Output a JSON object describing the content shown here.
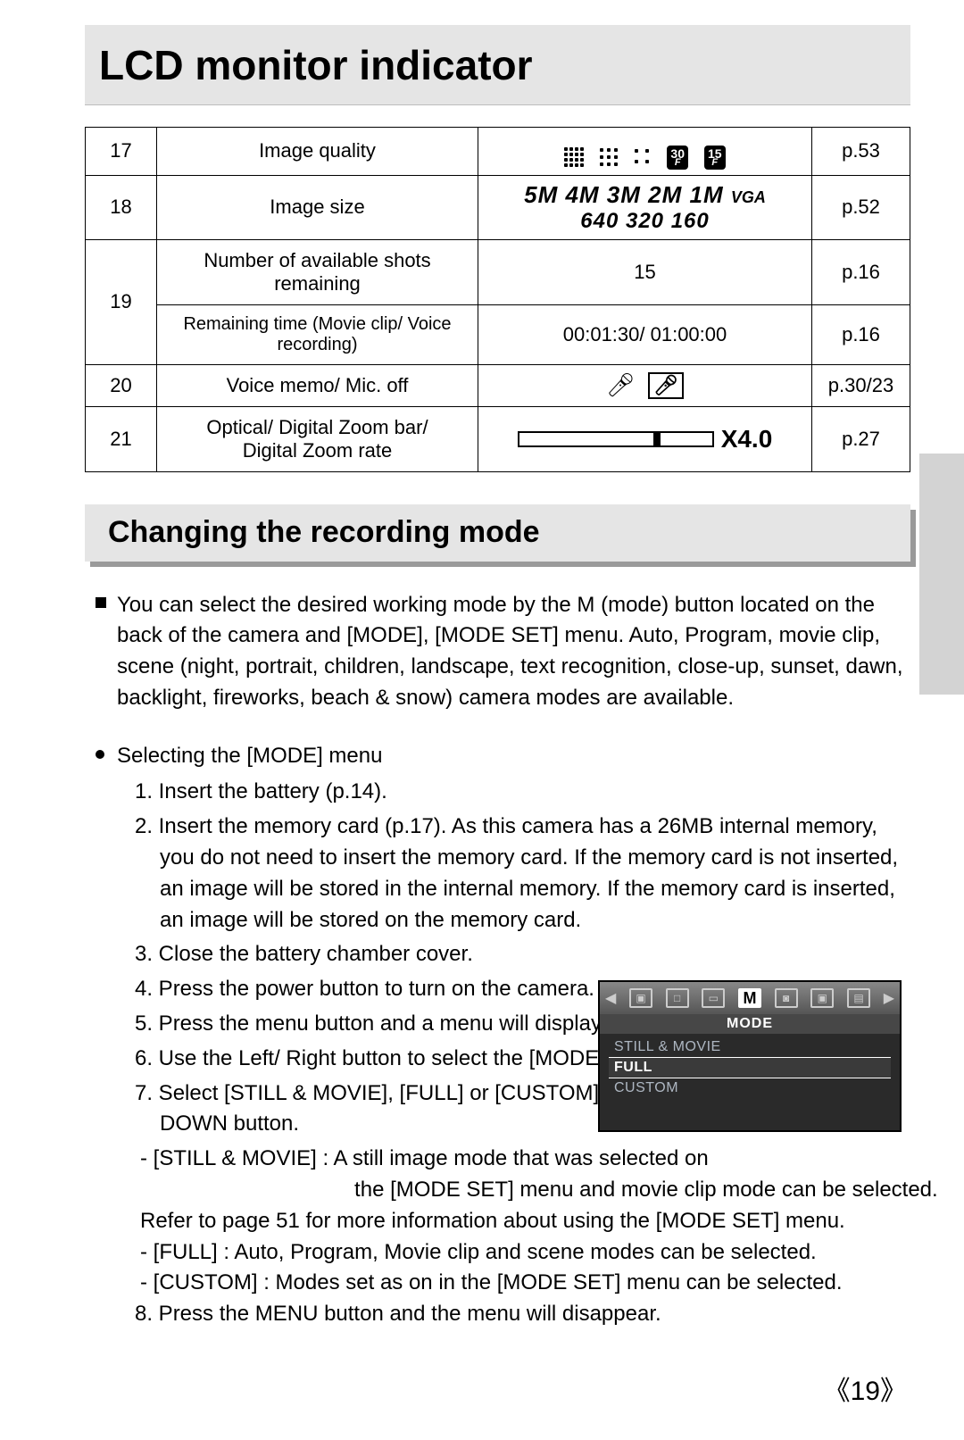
{
  "title": "LCD monitor indicator",
  "table": {
    "rows": [
      {
        "n": "17",
        "desc": "Image quality",
        "page": "p.53"
      },
      {
        "n": "18",
        "desc": "Image size",
        "page": "p.52",
        "sizes1": "5M  4M  3M  2M  1M",
        "vga": "VGA",
        "sizes2": "640  320  160"
      },
      {
        "n": "19",
        "sub1_desc": "Number of available shots remaining",
        "sub1_val": "15",
        "sub1_page": "p.16",
        "sub2_desc": "Remaining time (Movie clip/ Voice recording)",
        "sub2_val": "00:01:30/ 01:00:00",
        "sub2_page": "p.16"
      },
      {
        "n": "20",
        "desc": "Voice memo/ Mic. off",
        "page": "p.30/23"
      },
      {
        "n": "21",
        "desc1": "Optical/ Digital Zoom bar/",
        "desc2": "Digital Zoom rate",
        "zoom": "X4.0",
        "page": "p.27"
      }
    ],
    "fps": [
      "30",
      "15"
    ]
  },
  "section": {
    "heading": "Changing the recording mode",
    "intro": "You can select the desired working mode by the M (mode) button located on the back of the camera and [MODE], [MODE SET] menu.  Auto, Program, movie clip, scene (night, portrait, children, landscape, text recognition, close-up, sunset, dawn, backlight, fireworks, beach & snow) camera modes are available.",
    "subhead": "Selecting the [MODE] menu",
    "steps": [
      "1. Insert the battery (p.14).",
      "2. Insert the memory card (p.17). As this camera has a 26MB internal memory, you do not need to insert the memory card. If the memory card is not inserted, an image will be stored in the internal memory. If the memory card is inserted, an image will be stored on the memory card.",
      "3. Close the battery chamber cover.",
      "4. Press the power button to turn on the camera.",
      "5. Press the menu button and a menu will display.",
      "6. Use the Left/ Right button to select the [MODE] menu.",
      "7. Select [STILL & MOVIE], [FULL] or [CUSTOM] sub menu by pressing the UP/ DOWN button."
    ],
    "notes": [
      "- [STILL & MOVIE] : A still image mode that was selected on",
      "                                    the [MODE SET] menu and movie clip mode can be selected.",
      "  Refer to page 51 for more information about using the [MODE SET] menu.",
      "- [FULL] : Auto, Program, Movie clip and scene modes can be selected.",
      "- [CUSTOM] : Modes set as on in the [MODE SET] menu can be selected."
    ],
    "step8": "8. Press the MENU button and the menu will disappear."
  },
  "menu": {
    "title": "MODE",
    "items": [
      "STILL & MOVIE",
      "FULL",
      "CUSTOM"
    ],
    "selected": "FULL",
    "tab_letter": "M"
  },
  "pageNumber": "19"
}
